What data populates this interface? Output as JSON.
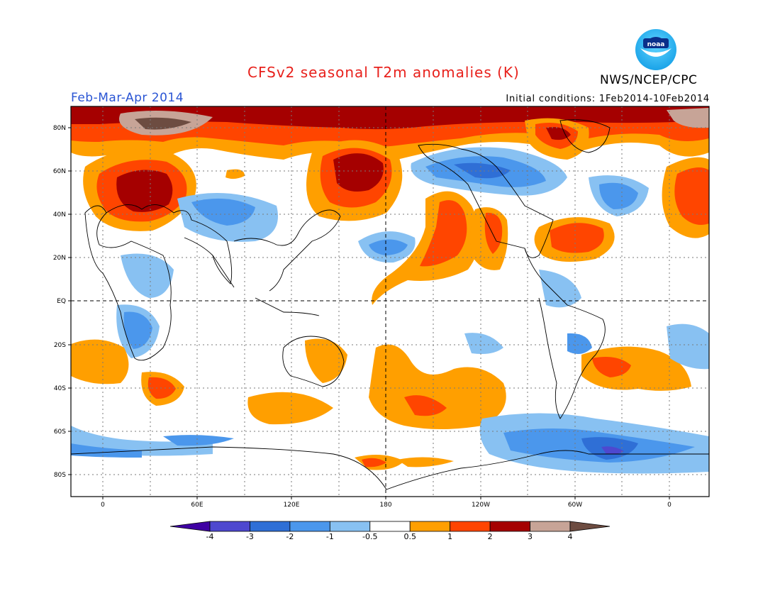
{
  "header": {
    "title": "CFSv2 seasonal T2m anomalies (K)",
    "season": "Feb-Mar-Apr 2014",
    "agency": "NWS/NCEP/CPC",
    "initial_conditions": "Initial conditions: 1Feb2014-10Feb2014",
    "logo_text": "noaa"
  },
  "map": {
    "lat_labels": [
      "80N",
      "60N",
      "40N",
      "20N",
      "EQ",
      "20S",
      "40S",
      "60S",
      "80S"
    ],
    "lon_labels": [
      "0",
      "60E",
      "120E",
      "180",
      "120W",
      "60W",
      "0"
    ]
  },
  "colorbar": {
    "labels": [
      "-4",
      "-3",
      "-2",
      "-1",
      "-0.5",
      "0.5",
      "1",
      "2",
      "3",
      "4"
    ],
    "colors": [
      "#3f00a3",
      "#4e48cf",
      "#2f6fd6",
      "#4b97ec",
      "#88c1f2",
      "#ffffff",
      "#ff9f00",
      "#ff4500",
      "#a50000",
      "#c7a497",
      "#6d4c41"
    ]
  }
}
